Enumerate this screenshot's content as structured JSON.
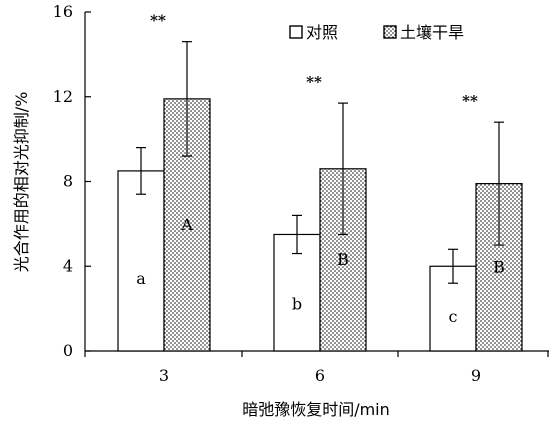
{
  "chart_data": {
    "type": "bar",
    "xlabel": "暗弛豫恢复时间/min",
    "ylabel": "光合作用的相对光抑制/%",
    "categories": [
      "3",
      "6",
      "9"
    ],
    "ylim": [
      0,
      16
    ],
    "yticks": [
      "0",
      "4",
      "8",
      "12",
      "16"
    ],
    "legend_position": "top-right",
    "grid": false,
    "series": [
      {
        "name": "对照",
        "values": [
          8.5,
          5.5,
          4.0
        ],
        "error": [
          1.1,
          0.9,
          0.8
        ],
        "labels": [
          "a",
          "b",
          "c"
        ],
        "fill": "white"
      },
      {
        "name": "土壤干旱",
        "values": [
          11.9,
          8.6,
          7.9
        ],
        "error": [
          2.7,
          3.1,
          2.9
        ],
        "labels": [
          "A",
          "B",
          "B"
        ],
        "fill": "dotted"
      }
    ],
    "significance": [
      "**",
      "**",
      "**"
    ]
  }
}
